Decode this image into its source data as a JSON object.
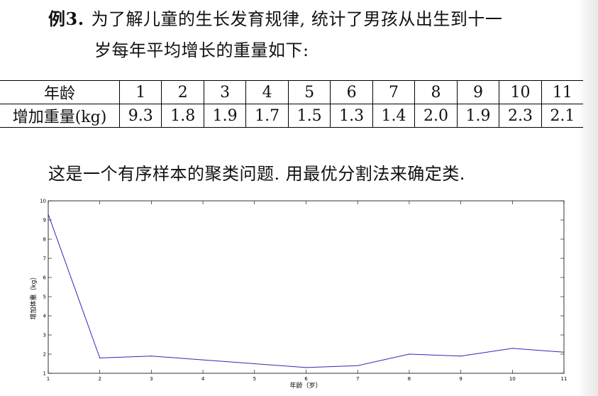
{
  "problem": {
    "label": "例3.",
    "line1": "为了解儿童的生长发育规律, 统计了男孩从出生到十一",
    "line2": "岁每年平均增长的重量如下:"
  },
  "table": {
    "header_label": "年龄",
    "row_label": "增加重量(kg)",
    "ages": [
      "1",
      "2",
      "3",
      "4",
      "5",
      "6",
      "7",
      "8",
      "9",
      "10",
      "11"
    ],
    "values": [
      "9.3",
      "1.8",
      "1.9",
      "1.7",
      "1.5",
      "1.3",
      "1.4",
      "2.0",
      "1.9",
      "2.3",
      "2.1"
    ]
  },
  "sentence": "这是一个有序样本的聚类问题. 用最优分割法来确定类.",
  "chart_data": {
    "type": "line",
    "x": [
      1,
      2,
      3,
      4,
      5,
      6,
      7,
      8,
      9,
      10,
      11
    ],
    "series": [
      {
        "values": [
          9.3,
          1.8,
          1.9,
          1.7,
          1.5,
          1.3,
          1.4,
          2.0,
          1.9,
          2.3,
          2.1
        ],
        "color": "#2b2bb8"
      }
    ],
    "xlabel": "年龄（岁）",
    "ylabel": "增加体重（kg）",
    "xlim": [
      1,
      11
    ],
    "ylim": [
      1,
      10
    ],
    "xticks": [
      "1",
      "2",
      "3",
      "4",
      "5",
      "6",
      "7",
      "8",
      "9",
      "10",
      "11"
    ],
    "yticks": [
      "1",
      "2",
      "3",
      "4",
      "5",
      "6",
      "7",
      "8",
      "9",
      "10"
    ],
    "grid": false
  }
}
